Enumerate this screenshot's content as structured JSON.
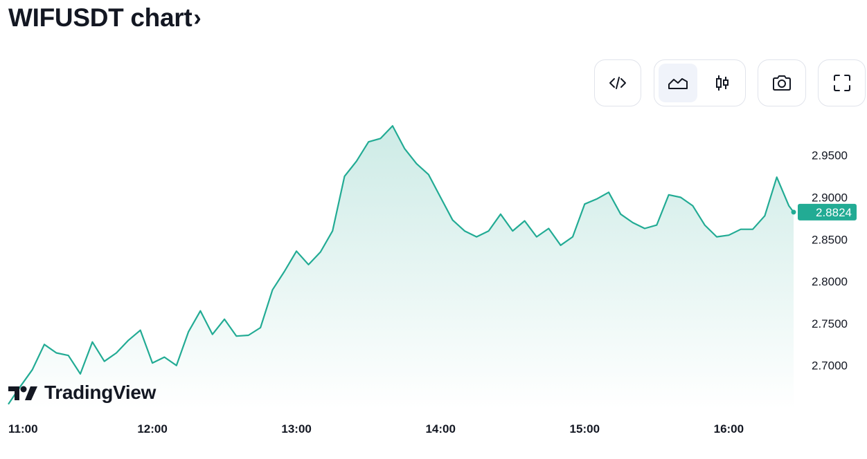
{
  "header": {
    "title": "WIFUSDT chart",
    "chevron": "›"
  },
  "toolbar": {
    "embed_icon": "code-icon",
    "line_icon": "area-chart-icon",
    "candles_icon": "candlestick-icon",
    "snapshot_icon": "camera-icon",
    "fullscreen_icon": "fullscreen-icon",
    "active": "area"
  },
  "branding": {
    "logo_text": "TradingView"
  },
  "colors": {
    "line": "#22ab94",
    "area_top": "#cdebe6",
    "area_bottom": "#ffffff",
    "tag_bg": "#22ab94"
  },
  "chart_data": {
    "type": "area",
    "symbol": "WIFUSDT",
    "x_tick_labels": [
      "11:00",
      "12:00",
      "13:00",
      "14:00",
      "15:00",
      "16:00"
    ],
    "y_tick_labels": [
      "2.9500",
      "2.9000",
      "2.8500",
      "2.8000",
      "2.7500",
      "2.7000"
    ],
    "y_ticks": [
      2.95,
      2.9,
      2.85,
      2.8,
      2.75,
      2.7
    ],
    "ylim": [
      2.648,
      2.99
    ],
    "xlim": [
      "11:00",
      "16:27"
    ],
    "last_price": 2.8824,
    "last_price_label": "2.8824",
    "grid": false,
    "series": [
      {
        "x": [
          "11:00",
          "11:05",
          "11:10",
          "11:15",
          "11:20",
          "11:25",
          "11:30",
          "11:35",
          "11:40",
          "11:45",
          "11:50",
          "11:55",
          "12:00",
          "12:05",
          "12:10",
          "12:15",
          "12:20",
          "12:25",
          "12:30",
          "12:35",
          "12:40",
          "12:45",
          "12:50",
          "12:55",
          "13:00",
          "13:05",
          "13:10",
          "13:15",
          "13:20",
          "13:25",
          "13:30",
          "13:35",
          "13:40",
          "13:45",
          "13:50",
          "13:55",
          "14:00",
          "14:05",
          "14:10",
          "14:15",
          "14:20",
          "14:25",
          "14:30",
          "14:35",
          "14:40",
          "14:45",
          "14:50",
          "14:55",
          "15:00",
          "15:05",
          "15:10",
          "15:15",
          "15:20",
          "15:25",
          "15:30",
          "15:35",
          "15:40",
          "15:45",
          "15:50",
          "15:55",
          "16:00",
          "16:05",
          "16:10",
          "16:15",
          "16:20",
          "16:25",
          "16:27"
        ],
        "values": [
          2.654,
          2.675,
          2.695,
          2.725,
          2.715,
          2.712,
          2.69,
          2.728,
          2.705,
          2.715,
          2.73,
          2.742,
          2.703,
          2.71,
          2.7,
          2.74,
          2.765,
          2.737,
          2.755,
          2.735,
          2.736,
          2.745,
          2.79,
          2.812,
          2.836,
          2.82,
          2.835,
          2.86,
          2.925,
          2.943,
          2.966,
          2.97,
          2.985,
          2.958,
          2.94,
          2.927,
          2.9,
          2.873,
          2.86,
          2.853,
          2.86,
          2.88,
          2.86,
          2.872,
          2.853,
          2.863,
          2.843,
          2.853,
          2.892,
          2.898,
          2.906,
          2.88,
          2.87,
          2.863,
          2.867,
          2.903,
          2.9,
          2.89,
          2.867,
          2.853,
          2.855,
          2.862,
          2.862,
          2.878,
          2.924,
          2.89,
          2.8824
        ]
      }
    ]
  }
}
